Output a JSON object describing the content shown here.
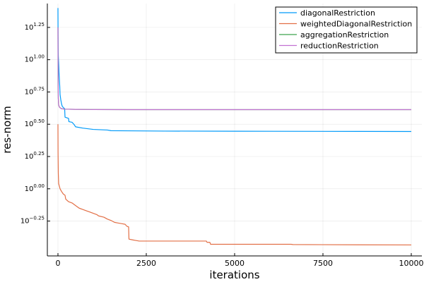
{
  "chart_data": {
    "type": "line",
    "xlabel": "iterations",
    "ylabel": "res-norm",
    "xlim": [
      -300,
      10300
    ],
    "ylim_log10": [
      -0.52,
      1.435
    ],
    "y_scale": "log10",
    "grid": true,
    "legend_position": "top-right",
    "xticks": [
      0,
      2500,
      5000,
      7500,
      10000
    ],
    "xtick_labels": [
      "0",
      "2500",
      "5000",
      "7500",
      "10000"
    ],
    "yticks_log10": [
      1.25,
      1.0,
      0.75,
      0.5,
      0.25,
      0.0,
      -0.25
    ],
    "ytick_exponents": [
      "1.25",
      "1.00",
      "0.75",
      "0.50",
      "0.25",
      "0.00",
      "−0.25"
    ],
    "ytick_base": "10",
    "series": [
      {
        "name": "diagonalRestriction",
        "color": "#009af9",
        "x": [
          0,
          3,
          6,
          10,
          15,
          20,
          25,
          30,
          40,
          50,
          60,
          80,
          100,
          120,
          150,
          190,
          200,
          300,
          310,
          400,
          450,
          500,
          700,
          1000,
          1400,
          1500,
          2000,
          3000,
          5000,
          7500,
          10000
        ],
        "y_log10": [
          1.4,
          1.2,
          1.1,
          1.03,
          1.0,
          0.97,
          0.94,
          0.9,
          0.85,
          0.8,
          0.73,
          0.69,
          0.66,
          0.64,
          0.63,
          0.62,
          0.555,
          0.545,
          0.52,
          0.515,
          0.5,
          0.48,
          0.47,
          0.46,
          0.455,
          0.45,
          0.449,
          0.447,
          0.446,
          0.445,
          0.444
        ]
      },
      {
        "name": "weightedDiagonalRestriction",
        "color": "#e26f46",
        "x": [
          0,
          3,
          10,
          20,
          40,
          60,
          100,
          150,
          200,
          220,
          300,
          400,
          500,
          600,
          700,
          800,
          900,
          1000,
          1100,
          1150,
          1300,
          1400,
          1500,
          1600,
          1700,
          1800,
          1900,
          1950,
          2000,
          2010,
          2100,
          2200,
          2300,
          3000,
          4000,
          4200,
          4220,
          4300,
          4320,
          5000,
          6000,
          6600,
          6650,
          7500,
          8500,
          10000
        ],
        "y_log10": [
          0.5,
          0.28,
          0.12,
          0.04,
          0.02,
          0.0,
          -0.02,
          -0.04,
          -0.05,
          -0.08,
          -0.1,
          -0.11,
          -0.13,
          -0.15,
          -0.16,
          -0.17,
          -0.18,
          -0.19,
          -0.2,
          -0.21,
          -0.22,
          -0.235,
          -0.245,
          -0.26,
          -0.265,
          -0.27,
          -0.275,
          -0.29,
          -0.295,
          -0.39,
          -0.395,
          -0.4,
          -0.405,
          -0.405,
          -0.405,
          -0.405,
          -0.415,
          -0.415,
          -0.43,
          -0.43,
          -0.43,
          -0.43,
          -0.432,
          -0.433,
          -0.434,
          -0.435
        ]
      },
      {
        "name": "aggregationRestriction",
        "color": "#3ea44e",
        "x": [
          0,
          3,
          6,
          10,
          15,
          20,
          30,
          50,
          100,
          200,
          500,
          1000,
          2000,
          5000,
          10000
        ],
        "y_log10": [
          1.25,
          0.95,
          0.8,
          0.7,
          0.67,
          0.65,
          0.64,
          0.63,
          0.62,
          0.617,
          0.615,
          0.614,
          0.613,
          0.613,
          0.613
        ]
      },
      {
        "name": "reductionRestriction",
        "color": "#c271d2",
        "x": [
          0,
          3,
          6,
          10,
          15,
          20,
          30,
          50,
          100,
          200,
          500,
          1000,
          2000,
          5000,
          10000
        ],
        "y_log10": [
          1.25,
          0.95,
          0.8,
          0.7,
          0.67,
          0.65,
          0.64,
          0.63,
          0.62,
          0.617,
          0.615,
          0.614,
          0.613,
          0.613,
          0.613
        ]
      }
    ]
  }
}
